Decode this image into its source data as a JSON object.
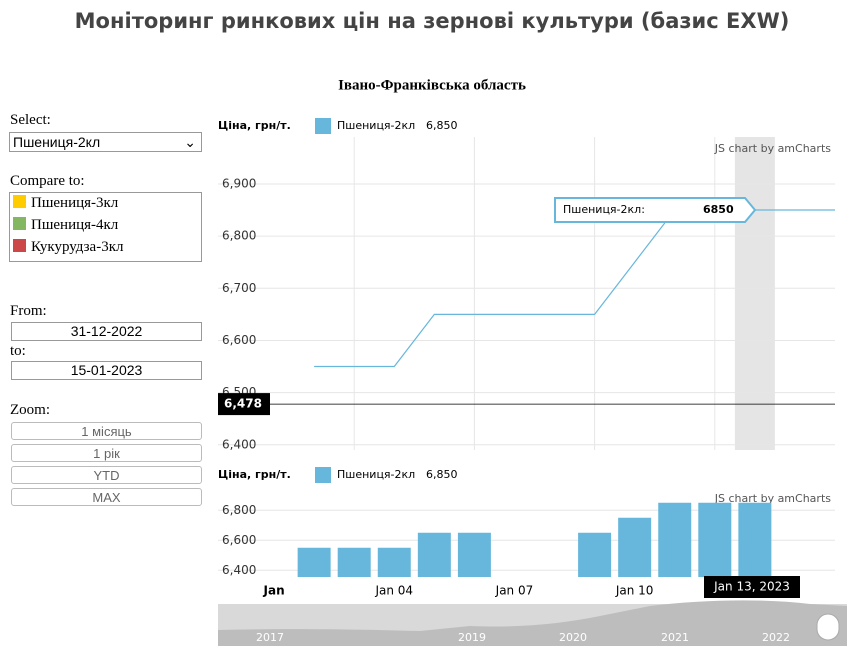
{
  "title": "Моніторинг ринкових цін на зернові культури (базис EXW)",
  "left_panel": {
    "select_label": "Select:",
    "select_value": "Пшениця-2кл",
    "compare_label": "Compare to:",
    "compare": [
      {
        "name": "Пшениця-3кл",
        "color": "#ffcc00"
      },
      {
        "name": "Пшениця-4кл",
        "color": "#84b761"
      },
      {
        "name": "Кукурудза-3кл",
        "color": "#cc4748"
      }
    ],
    "from_label": "From:",
    "from": "31-12-2022",
    "to_label": "to:",
    "to": "15-01-2023",
    "zoom_label": "Zoom:",
    "zoom": [
      "1 місяць",
      "1 рік",
      "YTD",
      "MAX"
    ]
  },
  "chart_data": [
    {
      "type": "line",
      "subtitle": "Івано-Франківська область",
      "y_label": "Ціна, грн/т.",
      "credit": "JS chart by amCharts",
      "x": [
        "2023-01-02",
        "2023-01-03",
        "2023-01-04",
        "2023-01-05",
        "2023-01-06",
        "2023-01-09",
        "2023-01-10",
        "2023-01-11",
        "2023-01-12",
        "2023-01-13",
        "2023-01-14",
        "2023-01-15"
      ],
      "series": [
        {
          "name": "Пшениця-2кл",
          "color": "#67b7dc",
          "legend_value": "6,850",
          "values": [
            6550,
            6550,
            6550,
            6650,
            6650,
            6650,
            6750,
            6850,
            6850,
            6850,
            6850,
            6850
          ]
        }
      ],
      "xlim": [
        "2022-12-31",
        "2023-01-15"
      ],
      "ylim": [
        6390,
        6990
      ],
      "yticks": [
        {
          "value": 6400,
          "label": "6,400"
        },
        {
          "value": 6500,
          "label": "6,500"
        },
        {
          "value": 6600,
          "label": "6,600"
        },
        {
          "value": 6700,
          "label": "6,700"
        },
        {
          "value": 6800,
          "label": "6,800"
        },
        {
          "value": 6900,
          "label": "6,900"
        }
      ],
      "xticks": [
        "2023-01-03",
        "2023-01-06",
        "2023-01-09",
        "2023-01-12"
      ],
      "cursor": {
        "value": 6478,
        "label": "6,478"
      },
      "tooltip": {
        "name": "Пшениця-2кл:",
        "value": 6850,
        "x": "2023-01-15"
      },
      "highlight": "2023-01-13"
    },
    {
      "type": "bar",
      "y_label": "Ціна, грн/т.",
      "credit": "JS chart by amCharts",
      "x": [
        "2023-01-02",
        "2023-01-03",
        "2023-01-04",
        "2023-01-05",
        "2023-01-06",
        "2023-01-09",
        "2023-01-10",
        "2023-01-11",
        "2023-01-12",
        "2023-01-13"
      ],
      "series": [
        {
          "name": "Пшениця-2кл",
          "color": "#67b7dc",
          "legend_value": "6,850",
          "values": [
            6550,
            6550,
            6550,
            6650,
            6650,
            6650,
            6750,
            6850,
            6850,
            6850
          ]
        }
      ],
      "xlim": [
        "2022-12-31",
        "2023-01-15"
      ],
      "ylim": [
        6355,
        6955
      ],
      "yticks": [
        {
          "value": 6400,
          "label": "6,400"
        },
        {
          "value": 6600,
          "label": "6,600"
        },
        {
          "value": 6800,
          "label": "6,800"
        }
      ],
      "xticks": [
        {
          "value": "2023-01-01",
          "label": "Jan"
        },
        {
          "value": "2023-01-04",
          "label": "Jan 04"
        },
        {
          "value": "2023-01-07",
          "label": "Jan 07"
        },
        {
          "value": "2023-01-10",
          "label": "Jan 10"
        }
      ],
      "cursor_label": "Jan 13, 2023"
    }
  ],
  "navigator": {
    "years": [
      "2017",
      "2019",
      "2020",
      "2021",
      "2022"
    ]
  }
}
